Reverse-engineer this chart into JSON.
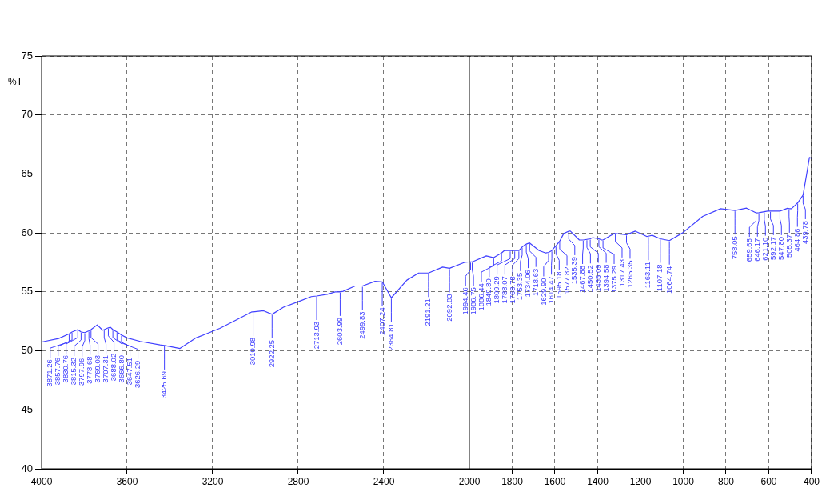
{
  "chart_data": {
    "type": "line",
    "ylabel": "%T",
    "xlim": [
      4000,
      400
    ],
    "ylim": [
      40,
      75
    ],
    "xticks": [
      4000,
      3600,
      3200,
      2800,
      2400,
      2000,
      1800,
      1600,
      1400,
      1200,
      1000,
      800,
      600,
      400
    ],
    "yticks": [
      40,
      45,
      50,
      55,
      60,
      65,
      70,
      75
    ],
    "grid": true,
    "legend": false,
    "marker": "none",
    "line_style": "solid",
    "ref_lines": [
      {
        "axis": "x",
        "value": 2000,
        "color": "#000000"
      }
    ],
    "series": [
      {
        "color": "#4040ff",
        "x": [
          4000,
          3920,
          3871.26,
          3857.76,
          3830.76,
          3815.32,
          3797.96,
          3778.68,
          3769.03,
          3740,
          3715,
          3707.31,
          3688.02,
          3678,
          3666.8,
          3647.51,
          3626.29,
          3600,
          3539,
          3446,
          3425.69,
          3353,
          3278,
          3167,
          3092,
          3018,
          3010.98,
          2962,
          2922.25,
          2869,
          2795,
          2739,
          2713.93,
          2665,
          2627,
          2603.99,
          2590,
          2534,
          2499.83,
          2441,
          2407.24,
          2364.81,
          2292,
          2237,
          2191.21,
          2125,
          2092.83,
          2023,
          1994.46,
          1986.75,
          1979,
          1921,
          1886.44,
          1849.8,
          1837,
          1809.29,
          1788.07,
          1768.78,
          1753.35,
          1743,
          1734.06,
          1718.63,
          1674,
          1643,
          1629.9,
          1614.47,
          1606,
          1595.18,
          1577.82,
          1559,
          1535.39,
          1528,
          1486,
          1467.88,
          1450.52,
          1435.09,
          1423,
          1394.58,
          1381,
          1375.29,
          1323,
          1317.43,
          1265.35,
          1224,
          1171,
          1163.11,
          1145,
          1107.18,
          1064.74,
          1003,
          909,
          825,
          758.05,
          704,
          659.68,
          646.17,
          621.1,
          605,
          592.17,
          547.8,
          510,
          505.37,
          494,
          464.86,
          439.78,
          421,
          410,
          400
        ],
        "values": [
          50.75,
          51.05,
          51.45,
          51.6,
          51.8,
          51.6,
          51.55,
          51.7,
          51.8,
          52.2,
          51.75,
          51.8,
          51.95,
          52.0,
          51.8,
          51.6,
          51.35,
          51.1,
          50.8,
          50.5,
          50.45,
          50.2,
          51.1,
          51.9,
          52.6,
          53.3,
          53.3,
          53.4,
          53.1,
          53.7,
          54.2,
          54.6,
          54.65,
          54.8,
          55.0,
          55.0,
          55.05,
          55.5,
          55.5,
          55.9,
          55.85,
          54.5,
          56.0,
          56.6,
          56.6,
          57.1,
          57.0,
          57.5,
          57.55,
          57.55,
          57.6,
          58.05,
          57.9,
          58.3,
          58.5,
          58.5,
          58.5,
          58.5,
          58.8,
          58.95,
          59.05,
          59.15,
          58.5,
          58.3,
          58.35,
          58.5,
          58.7,
          58.9,
          59.3,
          59.95,
          60.15,
          60.15,
          59.4,
          59.4,
          59.45,
          59.5,
          59.6,
          59.5,
          59.4,
          59.4,
          59.95,
          59.95,
          59.85,
          60.15,
          59.7,
          59.72,
          59.8,
          59.5,
          59.35,
          60.0,
          61.4,
          62.05,
          61.9,
          62.1,
          61.7,
          61.72,
          61.8,
          61.85,
          61.85,
          61.85,
          62.1,
          62.05,
          62.05,
          62.55,
          63.2,
          65.2,
          66.4,
          66.3
        ]
      }
    ],
    "annotations": [
      {
        "text": "3871.26",
        "x": 3871.26,
        "y": 51.45
      },
      {
        "text": "3857.76",
        "x": 3857.76,
        "y": 51.6
      },
      {
        "text": "3830.76",
        "x": 3830.76,
        "y": 51.8
      },
      {
        "text": "3815.32",
        "x": 3815.32,
        "y": 51.6
      },
      {
        "text": "3797.96",
        "x": 3797.96,
        "y": 51.55
      },
      {
        "text": "3778.68",
        "x": 3778.68,
        "y": 51.7
      },
      {
        "text": "3769.03",
        "x": 3769.03,
        "y": 51.8
      },
      {
        "text": "3707.31",
        "x": 3707.31,
        "y": 51.8
      },
      {
        "text": "3688.02",
        "x": 3688.02,
        "y": 51.95
      },
      {
        "text": "3666.80",
        "x": 3666.8,
        "y": 51.8
      },
      {
        "text": "3647.51",
        "x": 3647.51,
        "y": 51.6
      },
      {
        "text": "3626.29",
        "x": 3626.29,
        "y": 51.35
      },
      {
        "text": "3425.69",
        "x": 3425.69,
        "y": 50.45
      },
      {
        "text": "3010.98",
        "x": 3010.98,
        "y": 53.3
      },
      {
        "text": "2922.25",
        "x": 2922.25,
        "y": 53.1
      },
      {
        "text": "2713.93",
        "x": 2713.93,
        "y": 54.65
      },
      {
        "text": "2603.99",
        "x": 2603.99,
        "y": 55.0
      },
      {
        "text": "2499.83",
        "x": 2499.83,
        "y": 55.5
      },
      {
        "text": "2407.24",
        "x": 2407.24,
        "y": 55.85
      },
      {
        "text": "2364.81",
        "x": 2364.81,
        "y": 54.5
      },
      {
        "text": "2191.21",
        "x": 2191.21,
        "y": 56.6
      },
      {
        "text": "2092.83",
        "x": 2092.83,
        "y": 57.0
      },
      {
        "text": "1994.46",
        "x": 1994.46,
        "y": 57.55
      },
      {
        "text": "1986.75",
        "x": 1986.75,
        "y": 57.55
      },
      {
        "text": "1886.44",
        "x": 1886.44,
        "y": 57.9
      },
      {
        "text": "1849.80",
        "x": 1849.8,
        "y": 58.3
      },
      {
        "text": "1809.29",
        "x": 1809.29,
        "y": 58.5
      },
      {
        "text": "1788.07",
        "x": 1788.07,
        "y": 58.5
      },
      {
        "text": "1768.78",
        "x": 1768.78,
        "y": 58.5
      },
      {
        "text": "1753.35",
        "x": 1753.35,
        "y": 58.8
      },
      {
        "text": "1734.06",
        "x": 1734.06,
        "y": 59.05
      },
      {
        "text": "1718.63",
        "x": 1718.63,
        "y": 59.15
      },
      {
        "text": "1629.90",
        "x": 1629.9,
        "y": 58.35
      },
      {
        "text": "1614.47",
        "x": 1614.47,
        "y": 58.5
      },
      {
        "text": "1595.18",
        "x": 1595.18,
        "y": 58.9
      },
      {
        "text": "1577.82",
        "x": 1577.82,
        "y": 59.3
      },
      {
        "text": "1535.39",
        "x": 1535.39,
        "y": 60.15
      },
      {
        "text": "1467.88",
        "x": 1467.88,
        "y": 59.4
      },
      {
        "text": "1450.52",
        "x": 1450.52,
        "y": 59.45
      },
      {
        "text": "1435.09",
        "x": 1435.09,
        "y": 59.5
      },
      {
        "text": "1394.58",
        "x": 1394.58,
        "y": 59.5
      },
      {
        "text": "1375.29",
        "x": 1375.29,
        "y": 59.4
      },
      {
        "text": "1317.43",
        "x": 1317.43,
        "y": 59.95
      },
      {
        "text": "1265.35",
        "x": 1265.35,
        "y": 59.85
      },
      {
        "text": "1163.11",
        "x": 1163.11,
        "y": 59.72
      },
      {
        "text": "1107.18",
        "x": 1107.18,
        "y": 59.5
      },
      {
        "text": "1064.74",
        "x": 1064.74,
        "y": 59.35
      },
      {
        "text": "758.05",
        "x": 758.05,
        "y": 61.9
      },
      {
        "text": "659.68",
        "x": 659.68,
        "y": 61.7
      },
      {
        "text": "646.17",
        "x": 646.17,
        "y": 61.72
      },
      {
        "text": "621.10",
        "x": 621.1,
        "y": 61.8
      },
      {
        "text": "592.17",
        "x": 592.17,
        "y": 61.85
      },
      {
        "text": "547.80",
        "x": 547.8,
        "y": 61.85
      },
      {
        "text": "505.37",
        "x": 505.37,
        "y": 62.05
      },
      {
        "text": "464.86",
        "x": 464.86,
        "y": 62.55
      },
      {
        "text": "439.78",
        "x": 439.78,
        "y": 63.2
      }
    ]
  }
}
